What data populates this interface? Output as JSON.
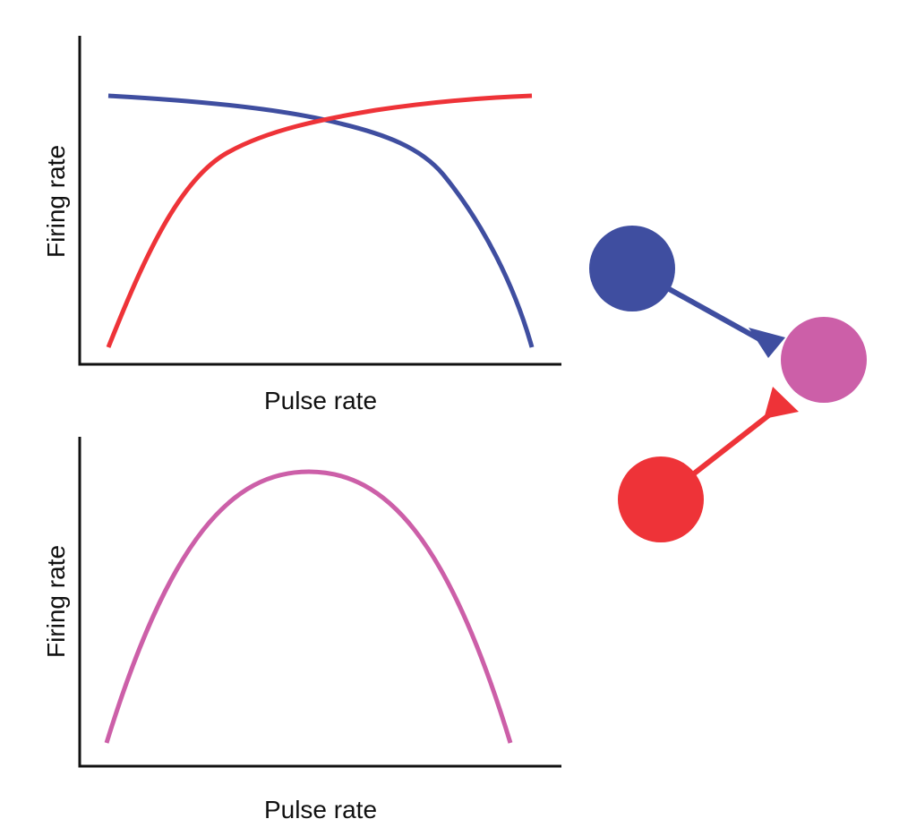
{
  "top_plot": {
    "xlabel": "Pulse rate",
    "ylabel": "Firing rate",
    "series": [
      {
        "name": "blue-neuron",
        "color": "#3f4ea0",
        "trend": "decreasing"
      },
      {
        "name": "red-neuron",
        "color": "#ee3338",
        "trend": "increasing"
      }
    ]
  },
  "bottom_plot": {
    "xlabel": "Pulse rate",
    "ylabel": "Firing rate",
    "series": [
      {
        "name": "pink-neuron",
        "color": "#cc5fa8",
        "trend": "inverted-u"
      }
    ]
  },
  "circuit": {
    "colors": {
      "blue": "#3f4ea0",
      "pink": "#cc5fa8",
      "red": "#ee3338"
    }
  }
}
